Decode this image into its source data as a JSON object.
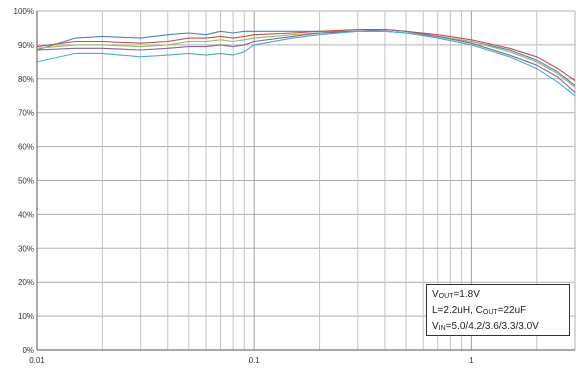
{
  "chart_data": {
    "type": "line",
    "x_scale": "log",
    "xlim": [
      0.01,
      3
    ],
    "ylim": [
      0,
      100
    ],
    "x_ticks": [
      0.01,
      0.1,
      1
    ],
    "x_tick_labels": [
      "0.01",
      "0.1",
      "1"
    ],
    "y_ticks": [
      0,
      10,
      20,
      30,
      40,
      50,
      60,
      70,
      80,
      90,
      100
    ],
    "y_tick_labels": [
      "0%",
      "10%",
      "20%",
      "30%",
      "40%",
      "50%",
      "60%",
      "70%",
      "80%",
      "90%",
      "100%"
    ],
    "grid": true,
    "legend_placement": "bottom-right",
    "annotation": {
      "line1_main": "V",
      "line1_sub": "OUT",
      "line1_rest": "=1.8V",
      "line2_pre": "L=2.2uH, C",
      "line2_sub": "OUT",
      "line2_rest": "=22uF",
      "line3_main": "V",
      "line3_sub": "IN",
      "line3_rest": "=5.0/4.2/3.6/3.3/3.0V"
    },
    "x": [
      0.01,
      0.015,
      0.02,
      0.03,
      0.04,
      0.05,
      0.06,
      0.07,
      0.08,
      0.09,
      0.1,
      0.15,
      0.2,
      0.3,
      0.4,
      0.5,
      0.7,
      1.0,
      1.5,
      2.0,
      2.5,
      3.0
    ],
    "series": [
      {
        "color": "#4f81bd",
        "values": [
          88.5,
          92.0,
          92.5,
          92.0,
          93.0,
          93.5,
          93.0,
          94.0,
          93.5,
          94.0,
          94.0,
          94.0,
          94.0,
          94.0,
          94.0,
          93.5,
          92.5,
          91.0,
          88.5,
          85.5,
          82.0,
          78.0
        ]
      },
      {
        "color": "#c0504d",
        "values": [
          89.5,
          91.0,
          91.0,
          90.5,
          91.0,
          92.0,
          92.0,
          92.5,
          92.0,
          92.5,
          93.0,
          93.5,
          94.0,
          94.5,
          94.5,
          94.0,
          93.0,
          91.5,
          89.0,
          86.5,
          83.0,
          79.5
        ]
      },
      {
        "color": "#9bbb59",
        "values": [
          89.0,
          90.0,
          90.0,
          89.5,
          90.0,
          91.0,
          91.0,
          91.5,
          91.0,
          91.5,
          92.0,
          93.0,
          93.5,
          94.0,
          94.0,
          93.5,
          92.5,
          91.0,
          88.0,
          85.0,
          81.5,
          77.5
        ]
      },
      {
        "color": "#8064a2",
        "values": [
          88.5,
          89.0,
          89.0,
          88.5,
          89.0,
          89.5,
          89.5,
          90.0,
          89.5,
          90.0,
          91.0,
          92.5,
          93.5,
          94.0,
          94.5,
          94.0,
          92.5,
          90.5,
          87.0,
          84.0,
          80.5,
          76.0
        ]
      },
      {
        "color": "#4bacc6",
        "values": [
          85.0,
          87.5,
          87.5,
          86.5,
          87.0,
          87.5,
          87.0,
          87.5,
          87.0,
          88.0,
          90.0,
          92.0,
          93.0,
          94.0,
          94.0,
          93.5,
          92.0,
          90.0,
          86.5,
          83.0,
          79.0,
          75.0
        ]
      }
    ]
  }
}
